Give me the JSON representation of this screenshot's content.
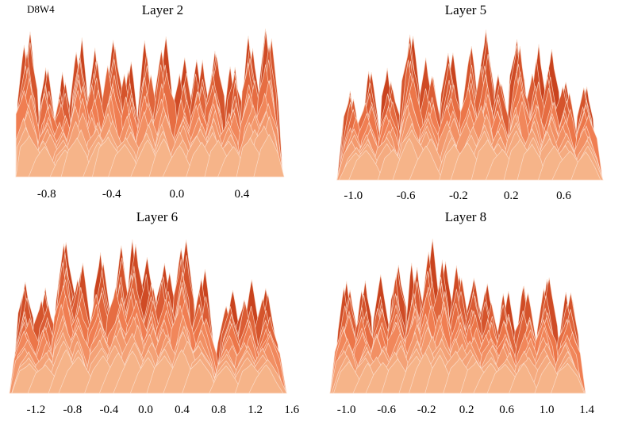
{
  "figure_label": "D8W4",
  "colors": {
    "dark": "#c9431e",
    "mid": "#ef7a4d",
    "light": "#f6b489",
    "edge": "#fbe3d3"
  },
  "chart_data": [
    {
      "type": "area",
      "title": "Layer 2",
      "xlabel": "",
      "ylabel": "",
      "xticks": [
        "-0.8",
        "-0.4",
        "0.0",
        "0.4"
      ],
      "xtick_values": [
        -0.8,
        -0.4,
        0.0,
        0.4
      ],
      "xlim": [
        -0.95,
        0.62
      ],
      "grid": false,
      "layers": 14,
      "peaks": [
        {
          "x": -0.92,
          "h": 0.95
        },
        {
          "x": -0.8,
          "h": 0.7
        },
        {
          "x": -0.7,
          "h": 0.62
        },
        {
          "x": -0.6,
          "h": 0.9
        },
        {
          "x": -0.5,
          "h": 0.8
        },
        {
          "x": -0.4,
          "h": 0.92
        },
        {
          "x": -0.3,
          "h": 0.75
        },
        {
          "x": -0.18,
          "h": 0.85
        },
        {
          "x": -0.08,
          "h": 0.88
        },
        {
          "x": 0.04,
          "h": 0.72
        },
        {
          "x": 0.14,
          "h": 0.8
        },
        {
          "x": 0.24,
          "h": 0.85
        },
        {
          "x": 0.34,
          "h": 0.7
        },
        {
          "x": 0.46,
          "h": 0.9
        },
        {
          "x": 0.56,
          "h": 0.98
        }
      ]
    },
    {
      "type": "area",
      "title": "Layer 5",
      "xlabel": "",
      "ylabel": "",
      "xticks": [
        "-1.0",
        "-0.6",
        "-0.2",
        "0.2",
        "0.6"
      ],
      "xtick_values": [
        -1.0,
        -0.6,
        -0.2,
        0.2,
        0.6
      ],
      "xlim": [
        -1.08,
        0.85
      ],
      "grid": false,
      "layers": 14,
      "peaks": [
        {
          "x": -1.0,
          "h": 0.62
        },
        {
          "x": -0.88,
          "h": 0.68
        },
        {
          "x": -0.72,
          "h": 0.7
        },
        {
          "x": -0.56,
          "h": 0.95
        },
        {
          "x": -0.42,
          "h": 0.78
        },
        {
          "x": -0.26,
          "h": 0.82
        },
        {
          "x": -0.12,
          "h": 0.85
        },
        {
          "x": 0.0,
          "h": 0.92
        },
        {
          "x": 0.12,
          "h": 0.7
        },
        {
          "x": 0.26,
          "h": 0.94
        },
        {
          "x": 0.38,
          "h": 0.82
        },
        {
          "x": 0.5,
          "h": 0.78
        },
        {
          "x": 0.62,
          "h": 0.66
        },
        {
          "x": 0.76,
          "h": 0.64
        }
      ]
    },
    {
      "type": "area",
      "title": "Layer 6",
      "xlabel": "",
      "ylabel": "",
      "xticks": [
        "-1.2",
        "-0.8",
        "-0.4",
        "0.0",
        "0.4",
        "0.8",
        "1.2",
        "1.6"
      ],
      "xtick_values": [
        -1.2,
        -0.8,
        -0.4,
        0.0,
        0.4,
        0.8,
        1.2,
        1.6
      ],
      "xlim": [
        -1.42,
        1.62
      ],
      "grid": false,
      "layers": 14,
      "peaks": [
        {
          "x": -1.3,
          "h": 0.65
        },
        {
          "x": -1.1,
          "h": 0.62
        },
        {
          "x": -0.9,
          "h": 0.95
        },
        {
          "x": -0.72,
          "h": 0.8
        },
        {
          "x": -0.5,
          "h": 0.82
        },
        {
          "x": -0.3,
          "h": 0.88
        },
        {
          "x": -0.12,
          "h": 0.92
        },
        {
          "x": 0.05,
          "h": 0.78
        },
        {
          "x": 0.22,
          "h": 0.82
        },
        {
          "x": 0.42,
          "h": 0.95
        },
        {
          "x": 0.62,
          "h": 0.74
        },
        {
          "x": 0.92,
          "h": 0.6
        },
        {
          "x": 1.12,
          "h": 0.65
        },
        {
          "x": 1.32,
          "h": 0.62
        }
      ]
    },
    {
      "type": "area",
      "title": "Layer 8",
      "xlabel": "",
      "ylabel": "",
      "xticks": [
        "-1.0",
        "-0.6",
        "-0.2",
        "0.2",
        "0.6",
        "1.0",
        "1.4"
      ],
      "xtick_values": [
        -1.0,
        -0.6,
        -0.2,
        0.2,
        0.6,
        1.0,
        1.4
      ],
      "xlim": [
        -1.1,
        1.45
      ],
      "grid": false,
      "layers": 14,
      "peaks": [
        {
          "x": -1.0,
          "h": 0.7
        },
        {
          "x": -0.82,
          "h": 0.66
        },
        {
          "x": -0.66,
          "h": 0.68
        },
        {
          "x": -0.48,
          "h": 0.76
        },
        {
          "x": -0.32,
          "h": 0.82
        },
        {
          "x": -0.18,
          "h": 0.9
        },
        {
          "x": -0.04,
          "h": 0.84
        },
        {
          "x": 0.12,
          "h": 0.78
        },
        {
          "x": 0.26,
          "h": 0.7
        },
        {
          "x": 0.42,
          "h": 0.66
        },
        {
          "x": 0.6,
          "h": 0.64
        },
        {
          "x": 0.8,
          "h": 0.66
        },
        {
          "x": 1.0,
          "h": 0.7
        },
        {
          "x": 1.22,
          "h": 0.66
        }
      ]
    }
  ]
}
